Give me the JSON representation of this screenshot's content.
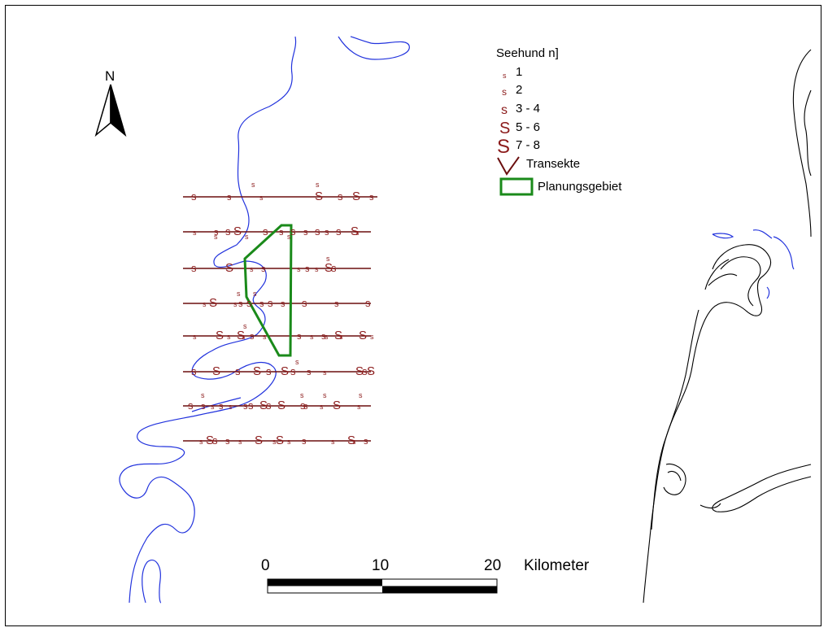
{
  "map": {
    "north_label": "N",
    "legend": {
      "title": "Seehund n]",
      "classes": [
        {
          "label": "1",
          "symbol": "s"
        },
        {
          "label": "2",
          "symbol": "s"
        },
        {
          "label": "3 - 4",
          "symbol": "s"
        },
        {
          "label": "5 - 6",
          "symbol": "S"
        },
        {
          "label": "7 - 8",
          "symbol": "S"
        }
      ],
      "transect_label": "Transekte",
      "area_label": "Planungsgebiet"
    },
    "scalebar": {
      "ticks": [
        "0",
        "10",
        "20"
      ],
      "unit": "Kilometer"
    },
    "colors": {
      "transect": "#6b0f0f",
      "area": "#1a8a1a",
      "depth_contour": "#2233dd",
      "coast": "#000000",
      "seal": "#8b1a1a"
    }
  }
}
